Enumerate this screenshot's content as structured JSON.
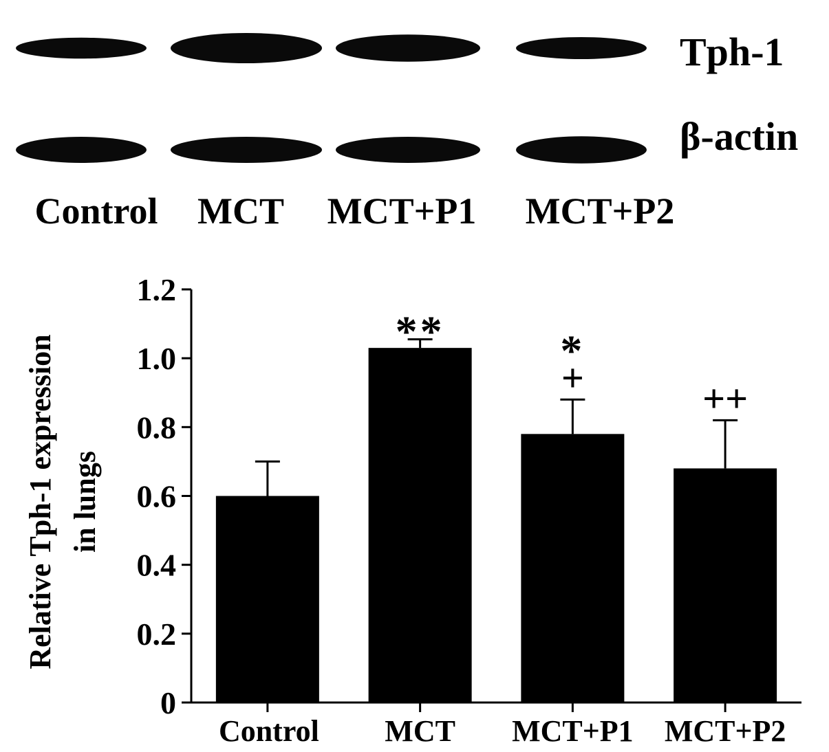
{
  "blot": {
    "rows": [
      {
        "label": "Tph-1",
        "intensities": [
          0.55,
          1.0,
          0.85,
          0.6
        ]
      },
      {
        "label": "β-actin",
        "intensities": [
          0.8,
          0.8,
          0.8,
          0.85
        ]
      }
    ],
    "lanes": [
      "Control",
      "MCT",
      "MCT+P1",
      "MCT+P2"
    ]
  },
  "chart_data": {
    "type": "bar",
    "categories": [
      "Control",
      "MCT",
      "MCT+P1",
      "MCT+P2"
    ],
    "values": [
      0.6,
      1.03,
      0.78,
      0.68
    ],
    "errors": [
      0.1,
      0.025,
      0.1,
      0.14
    ],
    "annotations": [
      {
        "category": "MCT",
        "lines": [
          "**"
        ]
      },
      {
        "category": "MCT+P1",
        "lines": [
          "*",
          "+"
        ]
      },
      {
        "category": "MCT+P2",
        "lines": [
          "++"
        ]
      }
    ],
    "ylabel": [
      "Relative Tph-1 expression",
      "in lungs"
    ],
    "ylim": [
      0,
      1.2
    ],
    "yticks": [
      {
        "value": 0,
        "label": "0"
      },
      {
        "value": 0.2,
        "label": "0.2"
      },
      {
        "value": 0.4,
        "label": "0.4"
      },
      {
        "value": 0.6,
        "label": "0.6"
      },
      {
        "value": 0.8,
        "label": "0.8"
      },
      {
        "value": 1.0,
        "label": "1.0"
      },
      {
        "value": 1.2,
        "label": "1.2"
      }
    ],
    "bar_color": "#000000",
    "grid": false
  }
}
